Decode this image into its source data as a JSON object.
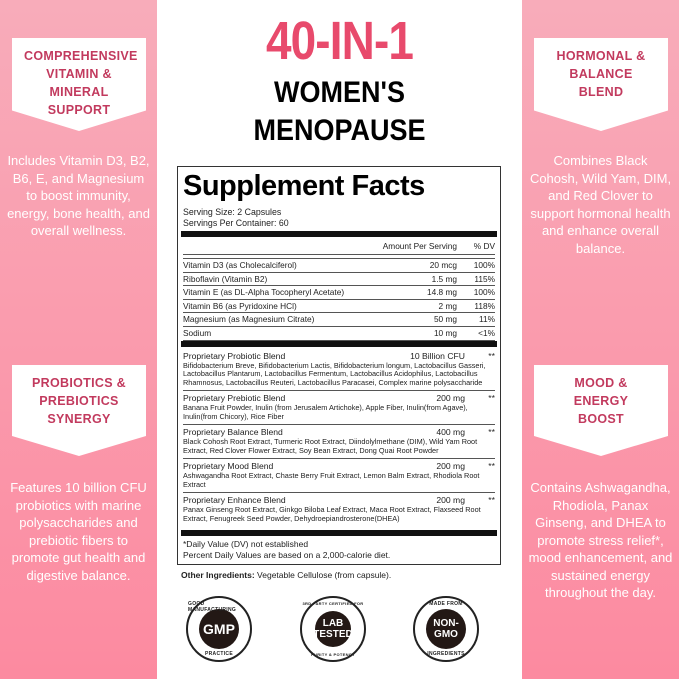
{
  "colors": {
    "panel_top": "#f8acba",
    "panel_bottom": "#fc8aa0",
    "badge_text": "#c23a5e",
    "title_accent": "#e84a6c"
  },
  "left": [
    {
      "heading": "COMPREHENSIVE VITAMIN & MINERAL SUPPORT",
      "text": "Includes Vitamin D3, B2, B6, E, and Magnesium to boost immunity, energy, bone health, and overall wellness."
    },
    {
      "heading": "PROBIOTICS & PREBIOTICS SYNERGY",
      "text": "Features 10 billion CFU probiotics with marine polysaccharides and prebiotic fibers to promote gut health and digestive balance."
    }
  ],
  "right": [
    {
      "heading": "HORMONAL & BALANCE BLEND",
      "text": "Combines Black Cohosh, Wild Yam, DIM, and Red Clover to support hormonal health and enhance overall balance."
    },
    {
      "heading": "MOOD & ENERGY BOOST",
      "text": "Contains Ashwagandha, Rhodiola, Panax Ginseng, and DHEA to promote stress relief*, mood enhancement, and sustained energy throughout the day."
    }
  ],
  "title": {
    "line1": "40-IN-1",
    "line2": "WOMEN'S",
    "line3": "MENOPAUSE"
  },
  "facts": {
    "heading": "Supplement Facts",
    "serving_size": "Serving Size: 2 Capsules",
    "servings": "Servings Per Container: 60",
    "col_amount": "Amount Per Serving",
    "col_dv": "% DV",
    "rows": [
      {
        "name": "Vitamin D3 (as Cholecalciferol)",
        "amount": "20 mcg",
        "dv": "100%"
      },
      {
        "name": "Riboflavin (Vitamin B2)",
        "amount": "1.5 mg",
        "dv": "115%"
      },
      {
        "name": "Vitamin E (as DL-Alpha Tocopheryl Acetate)",
        "amount": "14.8 mg",
        "dv": "100%"
      },
      {
        "name": "Vitamin B6 (as Pyridoxine HCl)",
        "amount": "2 mg",
        "dv": "118%"
      },
      {
        "name": "Magnesium (as Magnesium Citrate)",
        "amount": "50 mg",
        "dv": "11%"
      },
      {
        "name": "Sodium",
        "amount": "10 mg",
        "dv": "<1%"
      }
    ],
    "blends": [
      {
        "name": "Proprietary Probiotic Blend",
        "amount": "10 Billion CFU",
        "dv": "**",
        "ingredients": "Bifidobacterium Breve, Bifidobacterium Lactis, Bifidobacterium longum, Lactobacillus Gasseri, Lactobacillus Plantarum, Lactobacillus Fermentum, Lactobacillus Acidophilus, Lactobacillus Rhamnosus, Lactobacillus Reuteri, Lactobacillus Paracasei, Complex marine polysaccharide"
      },
      {
        "name": "Proprietary Prebiotic Blend",
        "amount": "200 mg",
        "dv": "**",
        "ingredients": "Banana Fruit Powder, Inulin (from Jerusalem Artichoke), Apple Fiber, Inulin(from Agave), Inulin(from Chicory), Rice Fiber"
      },
      {
        "name": "Proprietary Balance Blend",
        "amount": "400 mg",
        "dv": "**",
        "ingredients": "Black Cohosh Root Extract, Turmeric Root Extract, Diindolylmethane (DIM), Wild Yam Root Extract, Red Clover Flower Extract, Soy Bean Extract, Dong Quai Root Powder"
      },
      {
        "name": "Proprietary Mood Blend",
        "amount": "200 mg",
        "dv": "**",
        "ingredients": "Ashwagandha Root Extract, Chaste Berry Fruit Extract, Lemon Balm Extract, Rhodiola Root Extract"
      },
      {
        "name": "Proprietary Enhance Blend",
        "amount": "200 mg",
        "dv": "**",
        "ingredients": "Panax Ginseng Root Extract, Ginkgo Biloba Leaf Extract, Maca Root Extract, Flaxseed Root Extract, Fenugreek Seed Powder, Dehydroepiandrosterone(DHEA)"
      }
    ],
    "footnote1": "*Daily Value (DV) not established",
    "footnote2": "Percent Daily Values are based on a 2,000-calorie diet."
  },
  "other": {
    "label": "Other Ingredients:",
    "value": " Vegetable Cellulose (from capsule)."
  },
  "seals": [
    {
      "center": "GMP",
      "ring_top": "GOOD MANUFACTURING",
      "ring_bottom": "PRACTICE"
    },
    {
      "center": "LAB TESTED",
      "ring_top": "3RD PARTY CERTIFIED FOR",
      "ring_bottom": "PURITY & POTENCY"
    },
    {
      "center": "NON-GMO",
      "ring_top": "MADE FROM",
      "ring_bottom": "INGREDIENTS"
    }
  ]
}
